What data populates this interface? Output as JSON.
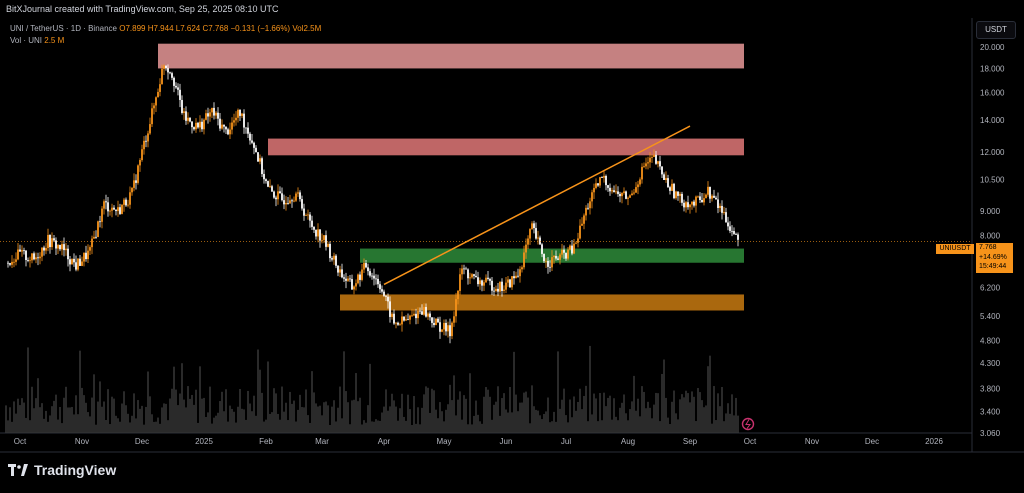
{
  "header": {
    "attribution": "BitXJournal created with TradingView.com, Sep 25, 2025 08:10 UTC"
  },
  "legend": {
    "symbol": "UNI / TetherUS · 1D · Binance",
    "open": "O7.899",
    "high": "H7.944",
    "low": "L7.624",
    "close": "C7.768",
    "change": "−0.131 (−1.66%)",
    "vol_inline": "Vol2.5M",
    "vol_label": "Vol · UNI",
    "vol_value": "2.5 M"
  },
  "currency_badge": "USDT",
  "price_label": {
    "symbol": "UNIUSDT",
    "price": "7.768",
    "change": "+14.69%",
    "countdown": "15:49:44"
  },
  "footer": {
    "brand": "TradingView"
  },
  "colors": {
    "up": "#f7931a",
    "down": "#ffffff",
    "volume": "#3a3a3a",
    "resistance_top": "#e89898",
    "resistance_mid": "#e07878",
    "support_green": "#2e8b3a",
    "support_orange": "#c87a10",
    "trendline": "#f7931a"
  },
  "chart_data": {
    "type": "candlestick",
    "y_axis": {
      "scale": "log",
      "ticks": [
        "20.000",
        "18.000",
        "16.000",
        "14.000",
        "12.000",
        "10.500",
        "9.000",
        "8.000",
        "6.200",
        "5.400",
        "4.800",
        "4.300",
        "3.800",
        "3.400",
        "3.060"
      ],
      "range": [
        3.06,
        23.0
      ]
    },
    "x_axis": {
      "ticks": [
        "Oct",
        "Nov",
        "Dec",
        "2025",
        "Feb",
        "Mar",
        "Apr",
        "May",
        "Jun",
        "Jul",
        "Aug",
        "Sep",
        "Oct",
        "Nov",
        "Dec",
        "2026"
      ],
      "start": "2024-09-24",
      "end": "2026-01-20"
    },
    "zones": [
      {
        "name": "resistance-zone-upper",
        "y_low": 18.0,
        "y_high": 20.3,
        "x_start": "2024-12-09",
        "x_end": "2025-09-28"
      },
      {
        "name": "resistance-zone-middle",
        "y_low": 11.8,
        "y_high": 12.8,
        "x_start": "2025-02-02",
        "x_end": "2025-09-28"
      },
      {
        "name": "support-zone-green",
        "y_low": 7.0,
        "y_high": 7.5,
        "x_start": "2025-03-20",
        "x_end": "2025-09-28"
      },
      {
        "name": "support-zone-orange",
        "y_low": 5.55,
        "y_high": 6.0,
        "x_start": "2025-03-10",
        "x_end": "2025-09-28"
      }
    ],
    "trendline": {
      "x1": "2025-04-01",
      "y1": 6.3,
      "x2": "2025-09-01",
      "y2": 13.6
    },
    "last_price": 7.768,
    "series": [
      {
        "date": "2024-09-24",
        "close": 7.0
      },
      {
        "date": "2024-10-01",
        "close": 7.3
      },
      {
        "date": "2024-10-08",
        "close": 7.1
      },
      {
        "date": "2024-10-15",
        "close": 7.8
      },
      {
        "date": "2024-10-22",
        "close": 7.5
      },
      {
        "date": "2024-10-29",
        "close": 6.9
      },
      {
        "date": "2024-11-05",
        "close": 7.4
      },
      {
        "date": "2024-11-12",
        "close": 9.3
      },
      {
        "date": "2024-11-19",
        "close": 9.0
      },
      {
        "date": "2024-11-26",
        "close": 9.8
      },
      {
        "date": "2024-12-01",
        "close": 12.0
      },
      {
        "date": "2024-12-07",
        "close": 15.0
      },
      {
        "date": "2024-12-12",
        "close": 18.5
      },
      {
        "date": "2024-12-16",
        "close": 17.6
      },
      {
        "date": "2024-12-22",
        "close": 14.2
      },
      {
        "date": "2024-12-29",
        "close": 13.5
      },
      {
        "date": "2025-01-05",
        "close": 14.6
      },
      {
        "date": "2025-01-12",
        "close": 13.2
      },
      {
        "date": "2025-01-19",
        "close": 14.5
      },
      {
        "date": "2025-01-26",
        "close": 12.4
      },
      {
        "date": "2025-02-02",
        "close": 10.0
      },
      {
        "date": "2025-02-09",
        "close": 9.5
      },
      {
        "date": "2025-02-16",
        "close": 9.8
      },
      {
        "date": "2025-02-23",
        "close": 8.5
      },
      {
        "date": "2025-03-02",
        "close": 7.8
      },
      {
        "date": "2025-03-09",
        "close": 6.8
      },
      {
        "date": "2025-03-16",
        "close": 6.2
      },
      {
        "date": "2025-03-23",
        "close": 6.9
      },
      {
        "date": "2025-03-30",
        "close": 6.3
      },
      {
        "date": "2025-04-06",
        "close": 5.2
      },
      {
        "date": "2025-04-13",
        "close": 5.3
      },
      {
        "date": "2025-04-20",
        "close": 5.6
      },
      {
        "date": "2025-04-27",
        "close": 5.2
      },
      {
        "date": "2025-05-04",
        "close": 5.0
      },
      {
        "date": "2025-05-10",
        "close": 6.8
      },
      {
        "date": "2025-05-17",
        "close": 6.4
      },
      {
        "date": "2025-05-24",
        "close": 6.3
      },
      {
        "date": "2025-05-31",
        "close": 6.2
      },
      {
        "date": "2025-06-07",
        "close": 6.6
      },
      {
        "date": "2025-06-14",
        "close": 8.3
      },
      {
        "date": "2025-06-21",
        "close": 7.0
      },
      {
        "date": "2025-06-28",
        "close": 7.2
      },
      {
        "date": "2025-07-05",
        "close": 7.5
      },
      {
        "date": "2025-07-12",
        "close": 9.3
      },
      {
        "date": "2025-07-19",
        "close": 10.6
      },
      {
        "date": "2025-07-26",
        "close": 9.8
      },
      {
        "date": "2025-08-02",
        "close": 9.6
      },
      {
        "date": "2025-08-09",
        "close": 11.2
      },
      {
        "date": "2025-08-14",
        "close": 11.6
      },
      {
        "date": "2025-08-20",
        "close": 10.4
      },
      {
        "date": "2025-08-27",
        "close": 9.5
      },
      {
        "date": "2025-09-03",
        "close": 9.3
      },
      {
        "date": "2025-09-10",
        "close": 9.9
      },
      {
        "date": "2025-09-17",
        "close": 9.0
      },
      {
        "date": "2025-09-25",
        "close": 7.768
      }
    ]
  }
}
